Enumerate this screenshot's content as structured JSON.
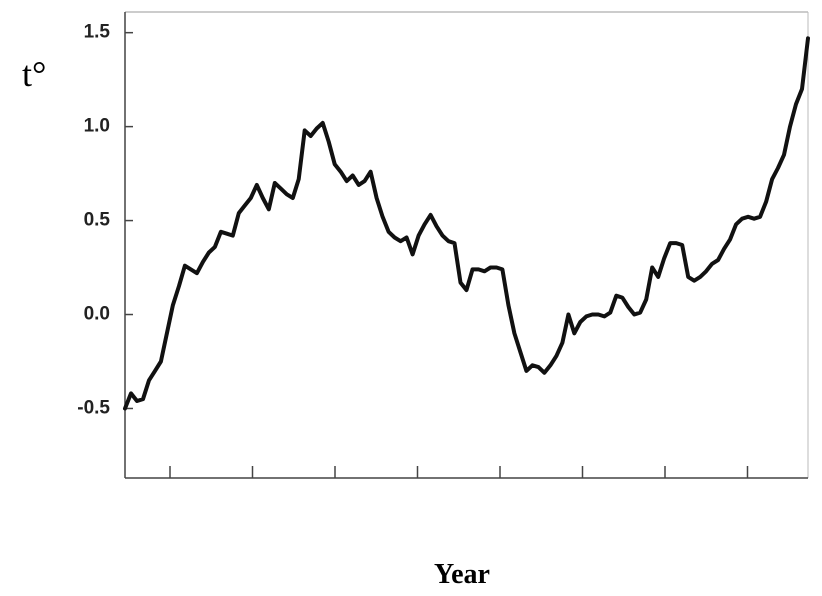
{
  "chart_data": {
    "type": "line",
    "ylabel": "t°",
    "xlabel": "Year",
    "color": "#111111",
    "ylim": [
      -0.87,
      1.61
    ],
    "yticks": [
      -0.5,
      {
        "value": 0,
        "label": "0.0"
      },
      0.5,
      {
        "value": 1,
        "label": "1.0"
      },
      1.5
    ],
    "values": [
      -0.5,
      -0.42,
      -0.46,
      -0.45,
      -0.35,
      -0.3,
      -0.25,
      -0.1,
      0.05,
      0.15,
      0.26,
      0.24,
      0.22,
      0.28,
      0.33,
      0.36,
      0.44,
      0.43,
      0.42,
      0.54,
      0.58,
      0.62,
      0.69,
      0.62,
      0.56,
      0.7,
      0.67,
      0.64,
      0.62,
      0.72,
      0.98,
      0.95,
      0.99,
      1.02,
      0.92,
      0.8,
      0.76,
      0.71,
      0.74,
      0.69,
      0.71,
      0.76,
      0.62,
      0.52,
      0.44,
      0.41,
      0.39,
      0.41,
      0.32,
      0.42,
      0.48,
      0.53,
      0.47,
      0.42,
      0.39,
      0.38,
      0.17,
      0.13,
      0.24,
      0.24,
      0.23,
      0.25,
      0.25,
      0.24,
      0.05,
      -0.1,
      -0.2,
      -0.3,
      -0.27,
      -0.28,
      -0.31,
      -0.27,
      -0.22,
      -0.15,
      0,
      -0.1,
      -0.04,
      -0.01,
      0,
      0,
      -0.01,
      0.01,
      0.1,
      0.09,
      0.04,
      0,
      0.01,
      0.08,
      0.25,
      0.2,
      0.3,
      0.38,
      0.38,
      0.37,
      0.2,
      0.18,
      0.2,
      0.23,
      0.27,
      0.29,
      0.35,
      0.4,
      0.48,
      0.51,
      0.52,
      0.51,
      0.52,
      0.6,
      0.72,
      0.78,
      0.85,
      1.0,
      1.12,
      1.2,
      1.47
    ]
  }
}
